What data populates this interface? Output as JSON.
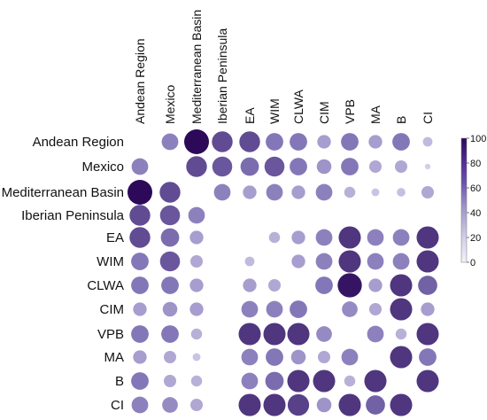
{
  "chart_data": {
    "type": "heatmap",
    "subtype": "correlation-dot-matrix",
    "title": "",
    "rows": [
      "Andean Region",
      "Mexico",
      "Mediterranean Basin",
      "Iberian Peninsula",
      "EA",
      "WIM",
      "CLWA",
      "CIM",
      "VPB",
      "MA",
      "B",
      "CI"
    ],
    "columns": [
      "Andean Region",
      "Mexico",
      "Mediterranean Basin",
      "Iberian Peninsula",
      "EA",
      "WIM",
      "CLWA",
      "CIM",
      "VPB",
      "MA",
      "B",
      "CI"
    ],
    "values": [
      [
        0,
        45,
        100,
        70,
        70,
        50,
        50,
        30,
        50,
        30,
        50,
        15
      ],
      [
        45,
        0,
        70,
        65,
        55,
        65,
        50,
        35,
        50,
        25,
        25,
        5
      ],
      [
        100,
        70,
        0,
        45,
        30,
        45,
        30,
        45,
        20,
        10,
        12,
        25
      ],
      [
        70,
        65,
        45,
        0,
        0,
        0,
        0,
        0,
        0,
        0,
        0,
        0
      ],
      [
        70,
        55,
        30,
        0,
        0,
        20,
        30,
        45,
        80,
        45,
        45,
        80
      ],
      [
        50,
        65,
        25,
        0,
        15,
        0,
        30,
        45,
        80,
        45,
        45,
        80
      ],
      [
        50,
        50,
        30,
        0,
        30,
        25,
        0,
        50,
        95,
        30,
        80,
        60
      ],
      [
        30,
        35,
        30,
        0,
        45,
        45,
        50,
        0,
        40,
        25,
        80,
        30
      ],
      [
        50,
        50,
        20,
        0,
        80,
        80,
        80,
        40,
        0,
        45,
        20,
        80
      ],
      [
        30,
        25,
        10,
        0,
        45,
        50,
        35,
        25,
        45,
        0,
        80,
        50
      ],
      [
        50,
        25,
        20,
        0,
        45,
        55,
        80,
        80,
        20,
        80,
        0,
        80
      ],
      [
        45,
        40,
        25,
        0,
        80,
        80,
        75,
        35,
        80,
        60,
        80,
        0
      ]
    ],
    "colorbar": {
      "min": 0,
      "max": 100,
      "ticks": [
        0,
        20,
        40,
        60,
        80,
        100
      ]
    },
    "colors": {
      "low": "#dcd6ee",
      "mid": "#8477b8",
      "high": "#2c0a59"
    }
  }
}
